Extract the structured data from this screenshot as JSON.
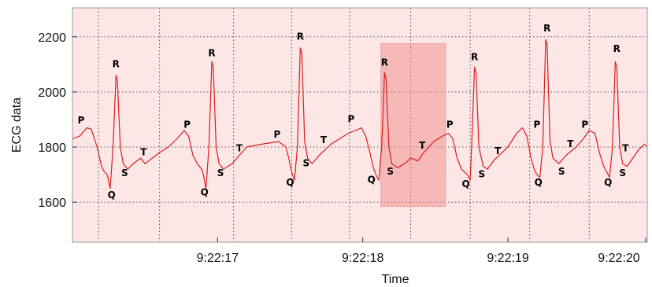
{
  "chart_data": {
    "type": "line",
    "title": "",
    "xlabel": "Time",
    "ylabel": "ECG data",
    "x_range_seconds": [
      16.0,
      19.96
    ],
    "x_ticks": [
      {
        "t": 17,
        "label": "9:22:17"
      },
      {
        "t": 18,
        "label": "9:22:18"
      },
      {
        "t": 19,
        "label": "9:22:19"
      },
      {
        "t": 20,
        "label": "9:22:20"
      }
    ],
    "ylim": [
      1455,
      2305
    ],
    "y_ticks": [
      1600,
      1800,
      2000,
      2200
    ],
    "grid": true,
    "colors": {
      "line": "#d81e1e",
      "background": "#fde6e6",
      "highlight": "#f08080",
      "grid": "#555555"
    },
    "highlight_region": {
      "t0": 18.125,
      "t1": 18.57,
      "y0": 1585,
      "y1": 2175
    },
    "beat_times": [
      16.18,
      16.6,
      17.11,
      17.51,
      17.91,
      18.33,
      18.74,
      19.15,
      19.56,
      19.96
    ],
    "series": [
      {
        "points": [
          [
            16.0,
            1830
          ],
          [
            16.05,
            1840
          ],
          [
            16.1,
            1870
          ],
          [
            16.13,
            1865
          ],
          [
            16.17,
            1800
          ],
          [
            16.2,
            1730
          ],
          [
            16.22,
            1710
          ],
          [
            16.24,
            1700
          ],
          [
            16.26,
            1650
          ],
          [
            16.28,
            1800
          ],
          [
            16.3,
            2060
          ],
          [
            16.31,
            2040
          ],
          [
            16.33,
            1800
          ],
          [
            16.35,
            1740
          ],
          [
            16.38,
            1720
          ],
          [
            16.42,
            1740
          ],
          [
            16.47,
            1760
          ],
          [
            16.5,
            1740
          ],
          [
            16.55,
            1760
          ],
          [
            16.6,
            1780
          ],
          [
            16.66,
            1800
          ],
          [
            16.72,
            1830
          ],
          [
            16.77,
            1860
          ],
          [
            16.8,
            1840
          ],
          [
            16.83,
            1770
          ],
          [
            16.86,
            1740
          ],
          [
            16.89,
            1720
          ],
          [
            16.9,
            1705
          ],
          [
            16.92,
            1650
          ],
          [
            16.94,
            1800
          ],
          [
            16.96,
            2110
          ],
          [
            16.97,
            2090
          ],
          [
            16.99,
            1800
          ],
          [
            17.01,
            1740
          ],
          [
            17.04,
            1720
          ],
          [
            17.1,
            1740
          ],
          [
            17.2,
            1800
          ],
          [
            17.3,
            1810
          ],
          [
            17.42,
            1820
          ],
          [
            17.47,
            1800
          ],
          [
            17.49,
            1760
          ],
          [
            17.51,
            1710
          ],
          [
            17.53,
            1680
          ],
          [
            17.55,
            1800
          ],
          [
            17.57,
            2160
          ],
          [
            17.58,
            2140
          ],
          [
            17.6,
            1820
          ],
          [
            17.62,
            1760
          ],
          [
            17.65,
            1740
          ],
          [
            17.7,
            1770
          ],
          [
            17.78,
            1810
          ],
          [
            17.84,
            1830
          ],
          [
            17.9,
            1850
          ],
          [
            17.95,
            1860
          ],
          [
            17.99,
            1870
          ],
          [
            18.02,
            1840
          ],
          [
            18.05,
            1780
          ],
          [
            18.07,
            1730
          ],
          [
            18.09,
            1700
          ],
          [
            18.11,
            1680
          ],
          [
            18.13,
            1800
          ],
          [
            18.15,
            2070
          ],
          [
            18.16,
            2050
          ],
          [
            18.18,
            1800
          ],
          [
            18.2,
            1740
          ],
          [
            18.24,
            1725
          ],
          [
            18.29,
            1740
          ],
          [
            18.33,
            1760
          ],
          [
            18.38,
            1750
          ],
          [
            18.42,
            1780
          ],
          [
            18.49,
            1820
          ],
          [
            18.55,
            1840
          ],
          [
            18.59,
            1850
          ],
          [
            18.62,
            1830
          ],
          [
            18.65,
            1760
          ],
          [
            18.68,
            1720
          ],
          [
            18.72,
            1700
          ],
          [
            18.74,
            1680
          ],
          [
            18.75,
            1800
          ],
          [
            18.77,
            2090
          ],
          [
            18.78,
            2070
          ],
          [
            18.8,
            1800
          ],
          [
            18.83,
            1730
          ],
          [
            18.86,
            1720
          ],
          [
            18.9,
            1750
          ],
          [
            18.96,
            1780
          ],
          [
            19.0,
            1800
          ],
          [
            19.06,
            1850
          ],
          [
            19.1,
            1870
          ],
          [
            19.13,
            1840
          ],
          [
            19.16,
            1760
          ],
          [
            19.18,
            1720
          ],
          [
            19.2,
            1700
          ],
          [
            19.22,
            1690
          ],
          [
            19.24,
            1800
          ],
          [
            19.26,
            2190
          ],
          [
            19.27,
            2170
          ],
          [
            19.29,
            1820
          ],
          [
            19.31,
            1760
          ],
          [
            19.35,
            1740
          ],
          [
            19.4,
            1770
          ],
          [
            19.47,
            1800
          ],
          [
            19.52,
            1830
          ],
          [
            19.56,
            1860
          ],
          [
            19.6,
            1850
          ],
          [
            19.63,
            1780
          ],
          [
            19.66,
            1730
          ],
          [
            19.68,
            1710
          ],
          [
            19.7,
            1690
          ],
          [
            19.72,
            1800
          ],
          [
            19.74,
            2110
          ],
          [
            19.75,
            2090
          ],
          [
            19.77,
            1800
          ],
          [
            19.79,
            1740
          ],
          [
            19.82,
            1730
          ],
          [
            19.86,
            1760
          ],
          [
            19.9,
            1790
          ],
          [
            19.94,
            1810
          ],
          [
            19.96,
            1800
          ]
        ]
      }
    ],
    "wave_labels": [
      {
        "text": "P",
        "t": 16.06,
        "y": 1885
      },
      {
        "text": "R",
        "t": 16.3,
        "y": 2090
      },
      {
        "text": "Q",
        "t": 16.27,
        "y": 1615
      },
      {
        "text": "S",
        "t": 16.36,
        "y": 1695
      },
      {
        "text": "T",
        "t": 16.49,
        "y": 1770
      },
      {
        "text": "P",
        "t": 16.79,
        "y": 1870
      },
      {
        "text": "R",
        "t": 16.96,
        "y": 2130
      },
      {
        "text": "Q",
        "t": 16.91,
        "y": 1625
      },
      {
        "text": "S",
        "t": 17.02,
        "y": 1695
      },
      {
        "text": "T",
        "t": 17.15,
        "y": 1785
      },
      {
        "text": "P",
        "t": 17.41,
        "y": 1835
      },
      {
        "text": "R",
        "t": 17.57,
        "y": 2190
      },
      {
        "text": "Q",
        "t": 17.5,
        "y": 1660
      },
      {
        "text": "S",
        "t": 17.61,
        "y": 1730
      },
      {
        "text": "T",
        "t": 17.73,
        "y": 1815
      },
      {
        "text": "P",
        "t": 17.92,
        "y": 1890
      },
      {
        "text": "R",
        "t": 18.15,
        "y": 2095
      },
      {
        "text": "Q",
        "t": 18.06,
        "y": 1670
      },
      {
        "text": "S",
        "t": 18.19,
        "y": 1700
      },
      {
        "text": "T",
        "t": 18.41,
        "y": 1795
      },
      {
        "text": "P",
        "t": 18.6,
        "y": 1870
      },
      {
        "text": "R",
        "t": 18.77,
        "y": 2115
      },
      {
        "text": "Q",
        "t": 18.71,
        "y": 1655
      },
      {
        "text": "S",
        "t": 18.82,
        "y": 1690
      },
      {
        "text": "T",
        "t": 18.93,
        "y": 1775
      },
      {
        "text": "P",
        "t": 19.2,
        "y": 1870
      },
      {
        "text": "R",
        "t": 19.27,
        "y": 2220
      },
      {
        "text": "Q",
        "t": 19.21,
        "y": 1660
      },
      {
        "text": "S",
        "t": 19.37,
        "y": 1700
      },
      {
        "text": "T",
        "t": 19.43,
        "y": 1800
      },
      {
        "text": "P",
        "t": 19.53,
        "y": 1870
      },
      {
        "text": "R",
        "t": 19.75,
        "y": 2145
      },
      {
        "text": "Q",
        "t": 19.69,
        "y": 1660
      },
      {
        "text": "S",
        "t": 19.79,
        "y": 1695
      },
      {
        "text": "T",
        "t": 19.81,
        "y": 1785
      }
    ]
  }
}
